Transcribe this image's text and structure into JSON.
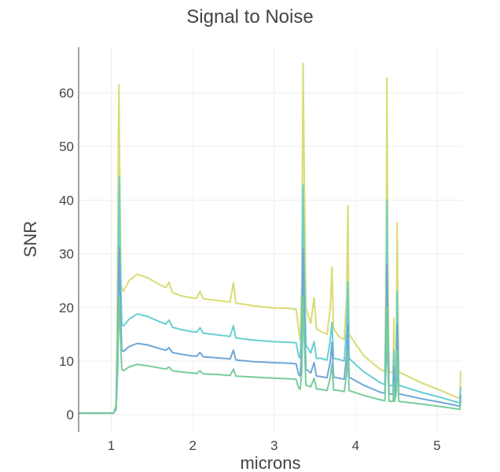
{
  "chart_data": {
    "type": "line",
    "title": "Signal to Noise",
    "xlabel": "microns",
    "ylabel": "SNR",
    "xlim": [
      0.6,
      5.3
    ],
    "ylim": [
      -3.2,
      68.5
    ],
    "x_ticks": [
      1,
      2,
      3,
      4,
      5
    ],
    "y_ticks": [
      0,
      10,
      20,
      30,
      40,
      50,
      60
    ],
    "grid": true,
    "legend": "none",
    "series": [
      {
        "color": "#d9dc72",
        "points": [
          [
            0.6,
            0.3
          ],
          [
            1.03,
            0.3
          ],
          [
            1.06,
            2
          ],
          [
            1.075,
            20
          ],
          [
            1.085,
            45
          ],
          [
            1.095,
            61.5
          ],
          [
            1.105,
            45
          ],
          [
            1.12,
            24
          ],
          [
            1.15,
            23
          ],
          [
            1.22,
            25
          ],
          [
            1.32,
            26.2
          ],
          [
            1.45,
            25.5
          ],
          [
            1.6,
            24.2
          ],
          [
            1.67,
            23.7
          ],
          [
            1.71,
            24.7
          ],
          [
            1.75,
            22.8
          ],
          [
            1.85,
            22.2
          ],
          [
            1.98,
            21.8
          ],
          [
            2.05,
            21.7
          ],
          [
            2.09,
            23
          ],
          [
            2.13,
            21.6
          ],
          [
            2.3,
            21.3
          ],
          [
            2.46,
            21
          ],
          [
            2.5,
            24.6
          ],
          [
            2.53,
            20.8
          ],
          [
            2.75,
            20.3
          ],
          [
            3.0,
            19.9
          ],
          [
            3.18,
            19.8
          ],
          [
            3.27,
            19.6
          ],
          [
            3.3,
            16
          ],
          [
            3.32,
            14
          ],
          [
            3.34,
            25
          ],
          [
            3.355,
            65.5
          ],
          [
            3.37,
            45
          ],
          [
            3.39,
            20
          ],
          [
            3.45,
            17
          ],
          [
            3.49,
            21.8
          ],
          [
            3.52,
            16
          ],
          [
            3.58,
            15.5
          ],
          [
            3.65,
            15
          ],
          [
            3.69,
            20
          ],
          [
            3.71,
            27.5
          ],
          [
            3.73,
            16
          ],
          [
            3.8,
            14.5
          ],
          [
            3.86,
            14
          ],
          [
            3.89,
            22
          ],
          [
            3.905,
            39
          ],
          [
            3.92,
            15
          ],
          [
            4.1,
            11
          ],
          [
            4.3,
            8.5
          ],
          [
            4.36,
            8
          ],
          [
            4.375,
            30
          ],
          [
            4.385,
            62.8
          ],
          [
            4.395,
            30
          ],
          [
            4.41,
            8
          ],
          [
            4.46,
            7.8
          ],
          [
            4.47,
            18
          ],
          [
            4.48,
            8
          ],
          [
            4.5,
            12
          ],
          [
            4.51,
            35.8
          ],
          [
            4.53,
            8
          ],
          [
            4.8,
            6
          ],
          [
            5.05,
            4.5
          ],
          [
            5.28,
            3
          ],
          [
            5.29,
            8
          ],
          [
            5.3,
            8
          ]
        ]
      },
      {
        "color": "#69cfcf",
        "points": [
          [
            0.6,
            0.3
          ],
          [
            1.03,
            0.3
          ],
          [
            1.06,
            1.5
          ],
          [
            1.08,
            15
          ],
          [
            1.09,
            33
          ],
          [
            1.1,
            44.3
          ],
          [
            1.11,
            30
          ],
          [
            1.13,
            17
          ],
          [
            1.15,
            16.5
          ],
          [
            1.22,
            17.8
          ],
          [
            1.32,
            18.8
          ],
          [
            1.45,
            18.3
          ],
          [
            1.6,
            17.3
          ],
          [
            1.67,
            16.9
          ],
          [
            1.71,
            17.6
          ],
          [
            1.75,
            16.3
          ],
          [
            1.85,
            15.9
          ],
          [
            1.98,
            15.5
          ],
          [
            2.05,
            15.4
          ],
          [
            2.09,
            16.2
          ],
          [
            2.13,
            15.2
          ],
          [
            2.3,
            14.9
          ],
          [
            2.46,
            14.6
          ],
          [
            2.5,
            16.6
          ],
          [
            2.53,
            14.3
          ],
          [
            2.75,
            13.9
          ],
          [
            3.0,
            13.6
          ],
          [
            3.18,
            13.5
          ],
          [
            3.27,
            13.4
          ],
          [
            3.3,
            11
          ],
          [
            3.32,
            10.5
          ],
          [
            3.34,
            18
          ],
          [
            3.355,
            42.8
          ],
          [
            3.37,
            28
          ],
          [
            3.39,
            13
          ],
          [
            3.45,
            11.5
          ],
          [
            3.49,
            13.6
          ],
          [
            3.52,
            10.5
          ],
          [
            3.58,
            10.5
          ],
          [
            3.65,
            10.2
          ],
          [
            3.69,
            14
          ],
          [
            3.71,
            17.2
          ],
          [
            3.73,
            10.5
          ],
          [
            3.8,
            10.3
          ],
          [
            3.86,
            10
          ],
          [
            3.89,
            16
          ],
          [
            3.905,
            24.8
          ],
          [
            3.92,
            10.5
          ],
          [
            4.1,
            8
          ],
          [
            4.3,
            6
          ],
          [
            4.36,
            5.6
          ],
          [
            4.375,
            20
          ],
          [
            4.385,
            40
          ],
          [
            4.395,
            20
          ],
          [
            4.41,
            5.5
          ],
          [
            4.46,
            5.4
          ],
          [
            4.47,
            12
          ],
          [
            4.48,
            5.5
          ],
          [
            4.5,
            8
          ],
          [
            4.51,
            23
          ],
          [
            4.53,
            5.5
          ],
          [
            4.8,
            4.2
          ],
          [
            5.05,
            3.2
          ],
          [
            5.28,
            2.2
          ],
          [
            5.29,
            5
          ],
          [
            5.3,
            5
          ]
        ]
      },
      {
        "color": "#6fa6d9",
        "points": [
          [
            0.6,
            0.3
          ],
          [
            1.03,
            0.3
          ],
          [
            1.06,
            1.2
          ],
          [
            1.08,
            10
          ],
          [
            1.09,
            25
          ],
          [
            1.1,
            31.2
          ],
          [
            1.11,
            22
          ],
          [
            1.13,
            12
          ],
          [
            1.15,
            11.8
          ],
          [
            1.22,
            12.7
          ],
          [
            1.32,
            13.3
          ],
          [
            1.45,
            13
          ],
          [
            1.6,
            12.3
          ],
          [
            1.67,
            12
          ],
          [
            1.71,
            12.5
          ],
          [
            1.75,
            11.6
          ],
          [
            1.85,
            11.3
          ],
          [
            1.98,
            11
          ],
          [
            2.05,
            10.9
          ],
          [
            2.09,
            11.6
          ],
          [
            2.13,
            10.8
          ],
          [
            2.3,
            10.6
          ],
          [
            2.46,
            10.4
          ],
          [
            2.5,
            12
          ],
          [
            2.53,
            10.2
          ],
          [
            2.75,
            9.9
          ],
          [
            3.0,
            9.7
          ],
          [
            3.18,
            9.6
          ],
          [
            3.27,
            9.5
          ],
          [
            3.3,
            7.5
          ],
          [
            3.32,
            7.2
          ],
          [
            3.34,
            12
          ],
          [
            3.355,
            31
          ],
          [
            3.37,
            20
          ],
          [
            3.39,
            8.5
          ],
          [
            3.45,
            7.8
          ],
          [
            3.49,
            9.7
          ],
          [
            3.52,
            7.2
          ],
          [
            3.58,
            7.1
          ],
          [
            3.65,
            6.9
          ],
          [
            3.69,
            10
          ],
          [
            3.71,
            13.5
          ],
          [
            3.73,
            7
          ],
          [
            3.8,
            6.8
          ],
          [
            3.86,
            6.6
          ],
          [
            3.89,
            11
          ],
          [
            3.905,
            17
          ],
          [
            3.92,
            7
          ],
          [
            4.1,
            5.5
          ],
          [
            4.3,
            4.2
          ],
          [
            4.36,
            4
          ],
          [
            4.375,
            14
          ],
          [
            4.385,
            28
          ],
          [
            4.395,
            14
          ],
          [
            4.41,
            3.9
          ],
          [
            4.46,
            3.8
          ],
          [
            4.47,
            9
          ],
          [
            4.48,
            3.9
          ],
          [
            4.5,
            6
          ],
          [
            4.51,
            17
          ],
          [
            4.53,
            3.9
          ],
          [
            4.8,
            3
          ],
          [
            5.05,
            2.3
          ],
          [
            5.28,
            1.6
          ],
          [
            5.29,
            3.5
          ],
          [
            5.3,
            3.5
          ]
        ]
      },
      {
        "color": "#78cc9c",
        "points": [
          [
            0.6,
            0.3
          ],
          [
            1.03,
            0.3
          ],
          [
            1.06,
            1
          ],
          [
            1.08,
            8
          ],
          [
            1.09,
            18
          ],
          [
            1.1,
            22
          ],
          [
            1.11,
            16
          ],
          [
            1.13,
            8.5
          ],
          [
            1.15,
            8.2
          ],
          [
            1.22,
            8.9
          ],
          [
            1.32,
            9.4
          ],
          [
            1.45,
            9.1
          ],
          [
            1.6,
            8.7
          ],
          [
            1.67,
            8.5
          ],
          [
            1.71,
            8.9
          ],
          [
            1.75,
            8.2
          ],
          [
            1.85,
            8
          ],
          [
            1.98,
            7.8
          ],
          [
            2.05,
            7.7
          ],
          [
            2.09,
            8.2
          ],
          [
            2.13,
            7.6
          ],
          [
            2.3,
            7.5
          ],
          [
            2.46,
            7.3
          ],
          [
            2.5,
            8.5
          ],
          [
            2.53,
            7.2
          ],
          [
            2.75,
            7
          ],
          [
            3.0,
            6.8
          ],
          [
            3.18,
            6.7
          ],
          [
            3.27,
            6.6
          ],
          [
            3.3,
            5
          ],
          [
            3.32,
            4.7
          ],
          [
            3.34,
            8
          ],
          [
            3.355,
            22
          ],
          [
            3.37,
            14
          ],
          [
            3.39,
            5.5
          ],
          [
            3.45,
            5.2
          ],
          [
            3.49,
            6.8
          ],
          [
            3.52,
            4.8
          ],
          [
            3.58,
            4.7
          ],
          [
            3.65,
            4.5
          ],
          [
            3.69,
            7
          ],
          [
            3.71,
            9.5
          ],
          [
            3.73,
            4.6
          ],
          [
            3.8,
            4.5
          ],
          [
            3.86,
            4.3
          ],
          [
            3.89,
            7.5
          ],
          [
            3.905,
            12
          ],
          [
            3.92,
            4.5
          ],
          [
            4.1,
            3.6
          ],
          [
            4.3,
            2.8
          ],
          [
            4.36,
            2.6
          ],
          [
            4.375,
            10
          ],
          [
            4.385,
            20
          ],
          [
            4.395,
            10
          ],
          [
            4.41,
            2.5
          ],
          [
            4.46,
            2.5
          ],
          [
            4.47,
            6
          ],
          [
            4.48,
            2.5
          ],
          [
            4.5,
            4
          ],
          [
            4.51,
            12
          ],
          [
            4.53,
            2.5
          ],
          [
            4.8,
            2
          ],
          [
            5.05,
            1.5
          ],
          [
            5.28,
            1
          ],
          [
            5.29,
            2.5
          ],
          [
            5.3,
            2.5
          ]
        ]
      }
    ]
  }
}
